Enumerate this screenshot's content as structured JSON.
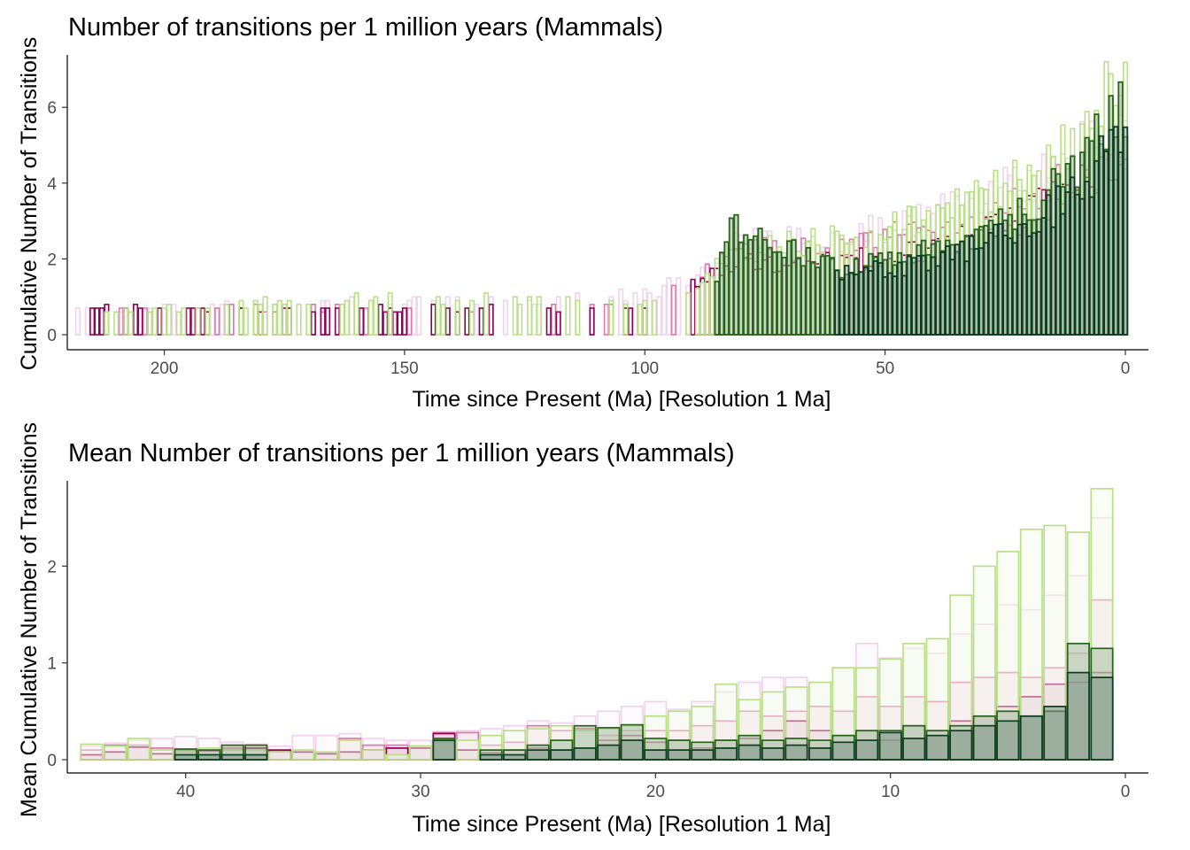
{
  "chart_data": [
    {
      "type": "bar",
      "title": "Number of transitions per 1 million years (Mammals)",
      "xlabel": "Time since Present (Ma) [Resolution 1 Ma]",
      "ylabel": "Cumulative Number of Transitions",
      "xlim": [
        220,
        0
      ],
      "ylim": [
        0,
        7.5
      ],
      "xticks": [
        200,
        150,
        100,
        50,
        0
      ],
      "yticks": [
        0,
        2,
        4,
        6
      ],
      "grid": false,
      "legend": "none",
      "palette": [
        "#f1d3ec",
        "#de77ae",
        "#8e0152",
        "#b8e186",
        "#276419",
        "#0b3d1e"
      ],
      "series": [
        {
          "color": "#f1d3ec",
          "anchors": [
            [
              218,
              0.7
            ],
            [
              200,
              0.8
            ],
            [
              150,
              0.9
            ],
            [
              120,
              1.0
            ],
            [
              100,
              1.1
            ],
            [
              90,
              1.5
            ],
            [
              80,
              2.5
            ],
            [
              60,
              2.6
            ],
            [
              40,
              3.3
            ],
            [
              20,
              4.2
            ],
            [
              10,
              5.1
            ],
            [
              5,
              5.5
            ],
            [
              0,
              5.6
            ]
          ],
          "start": 218,
          "end": 0,
          "density": 0.32
        },
        {
          "color": "#de77ae",
          "anchors": [
            [
              216,
              0.7
            ],
            [
              200,
              0.7
            ],
            [
              150,
              0.7
            ],
            [
              100,
              0.8
            ],
            [
              92,
              1.5
            ],
            [
              80,
              2.3
            ],
            [
              60,
              2.4
            ],
            [
              40,
              2.9
            ],
            [
              20,
              3.6
            ],
            [
              10,
              4.3
            ],
            [
              5,
              4.7
            ],
            [
              0,
              5.0
            ]
          ],
          "start": 216,
          "end": 0,
          "density": 0.28
        },
        {
          "color": "#8e0152",
          "anchors": [
            [
              215,
              0.7
            ],
            [
              200,
              0.7
            ],
            [
              150,
              0.7
            ],
            [
              100,
              0.8
            ],
            [
              90,
              1.4
            ],
            [
              80,
              2.0
            ],
            [
              60,
              2.0
            ],
            [
              40,
              2.3
            ],
            [
              20,
              3.3
            ],
            [
              10,
              4.2
            ],
            [
              5,
              4.6
            ],
            [
              0,
              5.0
            ]
          ],
          "start": 215,
          "end": 0,
          "density": 0.34
        },
        {
          "color": "#b8e186",
          "anchors": [
            [
              212,
              0.6
            ],
            [
              200,
              0.7
            ],
            [
              160,
              1.0
            ],
            [
              140,
              1.0
            ],
            [
              100,
              0.9
            ],
            [
              90,
              1.3
            ],
            [
              80,
              2.3
            ],
            [
              60,
              2.6
            ],
            [
              40,
              3.2
            ],
            [
              20,
              4.3
            ],
            [
              10,
              5.5
            ],
            [
              5,
              6.5
            ],
            [
              0,
              7.4
            ]
          ],
          "start": 212,
          "end": 0,
          "density": 0.38
        },
        {
          "color": "#276419",
          "anchors": [
            [
              216,
              0.7
            ],
            [
              85,
              1.7
            ],
            [
              82,
              3.0
            ],
            [
              70,
              2.3
            ],
            [
              60,
              1.8
            ],
            [
              40,
              2.3
            ],
            [
              30,
              2.6
            ],
            [
              20,
              3.5
            ],
            [
              10,
              4.5
            ],
            [
              5,
              5.5
            ],
            [
              0,
              6.1
            ]
          ],
          "start": 85,
          "end": 0,
          "density": 0.6
        },
        {
          "color": "#0b3d1e",
          "anchors": [
            [
              60,
              1.6
            ],
            [
              40,
              2.0
            ],
            [
              20,
              3.0
            ],
            [
              10,
              3.9
            ],
            [
              0,
              5.6
            ]
          ],
          "start": 60,
          "end": 0,
          "density": 0.7
        }
      ]
    },
    {
      "type": "bar",
      "title": "Mean Number of transitions per 1 million years (Mammals)",
      "xlabel": "Time since Present (Ma) [Resolution 1 Ma]",
      "ylabel": "Mean Cumulative Number of Transitions",
      "xlim": [
        45,
        0
      ],
      "ylim": [
        0,
        2.9
      ],
      "xticks": [
        40,
        30,
        20,
        10,
        0
      ],
      "yticks": [
        0,
        1,
        2
      ],
      "grid": false,
      "legend": "none",
      "bins": [
        44,
        43,
        42,
        41,
        40,
        39,
        38,
        37,
        36,
        35,
        34,
        33,
        32,
        31,
        30,
        29,
        28,
        27,
        26,
        25,
        24,
        23,
        22,
        21,
        20,
        19,
        18,
        17,
        16,
        15,
        14,
        13,
        12,
        11,
        10,
        9,
        8,
        7,
        6,
        5,
        4,
        3,
        2,
        1
      ],
      "series": [
        {
          "color": "#f1d3ec",
          "values": [
            0.14,
            0.17,
            0.2,
            0.22,
            0.24,
            0.22,
            0.18,
            0.16,
            0.14,
            0.25,
            0.25,
            0.27,
            0.22,
            0.2,
            0.2,
            0.29,
            0.3,
            0.32,
            0.35,
            0.4,
            0.38,
            0.45,
            0.5,
            0.55,
            0.6,
            0.52,
            0.6,
            0.7,
            0.8,
            0.85,
            0.85,
            0.8,
            0.95,
            1.2,
            1.05,
            1.15,
            1.1,
            1.3,
            1.4,
            1.6,
            1.55,
            1.7,
            1.9,
            2.5
          ]
        },
        {
          "color": "#de77ae",
          "values": [
            0.1,
            0.15,
            0.15,
            0.12,
            0.1,
            0.1,
            0.12,
            0.12,
            0.09,
            0.08,
            0.06,
            0.22,
            0.15,
            0.15,
            0.14,
            0.28,
            0.28,
            0.15,
            0.18,
            0.35,
            0.3,
            0.32,
            0.25,
            0.3,
            0.3,
            0.3,
            0.35,
            0.4,
            0.5,
            0.45,
            0.5,
            0.55,
            0.5,
            0.65,
            0.55,
            0.65,
            0.6,
            0.8,
            0.85,
            0.9,
            0.85,
            0.95,
            1.1,
            1.65
          ]
        },
        {
          "color": "#8e0152",
          "values": [
            0.05,
            0.08,
            0.13,
            0.06,
            0.08,
            0.09,
            0.1,
            0.12,
            0.1,
            0.08,
            0.06,
            0.08,
            0.1,
            0.12,
            0.12,
            0.27,
            0.1,
            0.07,
            0.1,
            0.12,
            0.1,
            0.12,
            0.2,
            0.25,
            0.18,
            0.2,
            0.12,
            0.2,
            0.22,
            0.3,
            0.4,
            0.3,
            0.25,
            0.3,
            0.2,
            0.35,
            0.3,
            0.4,
            0.45,
            0.55,
            0.65,
            0.78,
            0.8,
            0.9
          ]
        },
        {
          "color": "#b8e186",
          "values": [
            0.16,
            0.14,
            0.22,
            0.1,
            0.08,
            0.12,
            0.1,
            0.1,
            0.08,
            0.1,
            0.08,
            0.2,
            0.1,
            0.05,
            0.14,
            0.18,
            0.2,
            0.25,
            0.3,
            0.32,
            0.35,
            0.3,
            0.32,
            0.35,
            0.45,
            0.5,
            0.55,
            0.78,
            0.62,
            0.7,
            0.75,
            0.8,
            0.95,
            0.95,
            1.04,
            1.2,
            1.25,
            1.7,
            2.0,
            2.15,
            2.38,
            2.42,
            2.35,
            2.8
          ]
        },
        {
          "color": "#276419",
          "values": [
            0.0,
            0.0,
            0.0,
            0.0,
            0.11,
            0.1,
            0.15,
            0.15,
            0.0,
            0.0,
            0.0,
            0.0,
            0.0,
            0.0,
            0.0,
            0.22,
            0.0,
            0.1,
            0.1,
            0.15,
            0.2,
            0.35,
            0.33,
            0.36,
            0.22,
            0.2,
            0.18,
            0.2,
            0.25,
            0.2,
            0.22,
            0.2,
            0.25,
            0.3,
            0.3,
            0.35,
            0.3,
            0.35,
            0.45,
            0.5,
            0.45,
            0.5,
            1.2,
            1.15
          ]
        },
        {
          "color": "#0b3d1e",
          "values": [
            0.0,
            0.0,
            0.0,
            0.0,
            0.05,
            0.05,
            0.05,
            0.05,
            0.0,
            0.0,
            0.0,
            0.0,
            0.0,
            0.0,
            0.0,
            0.2,
            0.0,
            0.05,
            0.05,
            0.1,
            0.1,
            0.12,
            0.15,
            0.2,
            0.1,
            0.1,
            0.1,
            0.12,
            0.15,
            0.12,
            0.15,
            0.12,
            0.18,
            0.2,
            0.28,
            0.22,
            0.25,
            0.3,
            0.35,
            0.4,
            0.45,
            0.55,
            0.9,
            0.85
          ]
        }
      ]
    }
  ]
}
